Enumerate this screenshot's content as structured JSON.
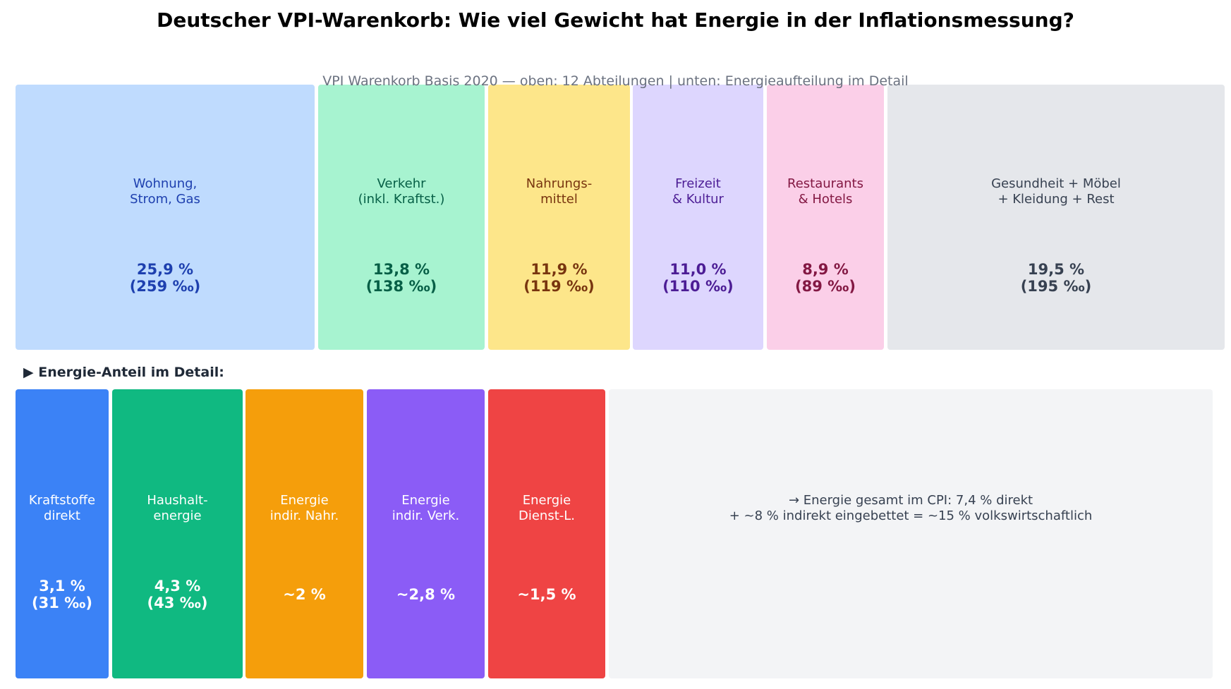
{
  "title": "Deutscher VPI-Warenkorb: Wie viel Gewicht hat Energie in der Inflationsmessung?",
  "subtitle": "VPI Warenkorb Basis 2020 — oben: 12 Abteilungen | unten: Energieaufteilung im Detail",
  "section_label": "▶ Energie-Anteil im Detail:",
  "chart_data": [
    {
      "type": "treemap",
      "title": "VPI Warenkorb Basis 2020 — oben: 12 Abteilungen",
      "items": [
        {
          "label": "Wohnung,\nStrom, Gas",
          "value_text": "25,9 %\n(259 ‰)",
          "value": 25.9,
          "fill": "#bfdbfe",
          "text_color": "#1e40af"
        },
        {
          "label": "Verkehr\n(inkl. Kraftst.)",
          "value_text": "13,8 %\n(138 ‰)",
          "value": 13.8,
          "fill": "#a7f3d0",
          "text_color": "#065f46"
        },
        {
          "label": "Nahrungs-\nmittel",
          "value_text": "11,9 %\n(119 ‰)",
          "value": 11.9,
          "fill": "#fde68a",
          "text_color": "#78350f"
        },
        {
          "label": "Freizeit\n& Kultur",
          "value_text": "11,0 %\n(110 ‰)",
          "value": 11.0,
          "fill": "#ddd6fe",
          "text_color": "#4c1d95"
        },
        {
          "label": "Restaurants\n& Hotels",
          "value_text": "8,9 %\n(89 ‰)",
          "value": 8.9,
          "fill": "#fbcfe8",
          "text_color": "#831843"
        },
        {
          "label": "Gesundheit + Möbel\n+ Kleidung + Rest",
          "value_text": "19,5 %\n(195 ‰)",
          "value": 19.5,
          "fill": "#e5e7eb",
          "text_color": "#374151"
        }
      ]
    },
    {
      "type": "treemap",
      "title": "Energie-Anteil im Detail",
      "items": [
        {
          "label": "Kraftstoffe\ndirekt",
          "value_text": "3,1 %\n(31 ‰)",
          "value": 3.1,
          "fill": "#3b82f6",
          "text_color": "#ffffff"
        },
        {
          "label": "Haushalt-\nenergie",
          "value_text": "4,3 %\n(43 ‰)",
          "value": 4.3,
          "fill": "#10b981",
          "text_color": "#ffffff"
        },
        {
          "label": "Energie\nindir. Nahr.",
          "value_text": "~2 %",
          "value": 2,
          "fill": "#f59e0b",
          "text_color": "#ffffff"
        },
        {
          "label": "Energie\nindir. Verk.",
          "value_text": "~2,8 %",
          "value": 2.8,
          "fill": "#8b5cf6",
          "text_color": "#ffffff"
        },
        {
          "label": "Energie\nDienst-L.",
          "value_text": "~1,5 %",
          "value": 1.5,
          "fill": "#ef4444",
          "text_color": "#ffffff"
        },
        {
          "label": "→ Energie gesamt im CPI: 7,4 % direkt\n+ ~8 % indirekt eingebettet = ~15 % volkswirtschaftlich",
          "value_text": "",
          "fill": "#f3f4f6",
          "text_color": "#374151"
        }
      ]
    }
  ]
}
